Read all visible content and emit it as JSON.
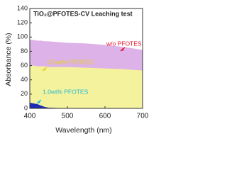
{
  "chart_data": {
    "type": "area",
    "title": "TiO₂@PFOTES-CV  Leaching test",
    "x_label": "Wavelength  (nm)",
    "y_label": "Absorbance (%)",
    "x": [
      400,
      410,
      420,
      430,
      440,
      450,
      475,
      500,
      550,
      600,
      650,
      700
    ],
    "series": [
      {
        "name": "w/o PFOTES",
        "color": "#dcb2e8",
        "label_color": "#e8102a",
        "values": [
          96,
          96,
          95,
          95,
          94,
          94,
          93,
          92,
          91,
          89,
          86,
          82
        ]
      },
      {
        "name": "0.5wt%  PFOTES",
        "color": "#f4f29c",
        "label_color": "#e6d21a",
        "values": [
          60,
          60,
          59,
          59,
          59,
          58,
          58,
          58,
          57,
          56,
          55,
          53
        ]
      },
      {
        "name": "1.0wt%  PFOTES",
        "color": "#1a2db4",
        "label_color": "#22b8d8",
        "values": [
          8,
          7,
          6,
          4,
          2,
          1,
          0.5,
          0,
          0,
          0,
          0,
          0
        ]
      }
    ],
    "xlim": [
      400,
      700
    ],
    "xticks": [
      400,
      500,
      600,
      700
    ],
    "ylim": [
      0,
      140
    ],
    "yticks": [
      0,
      20,
      40,
      60,
      80,
      100,
      120,
      140
    ]
  }
}
